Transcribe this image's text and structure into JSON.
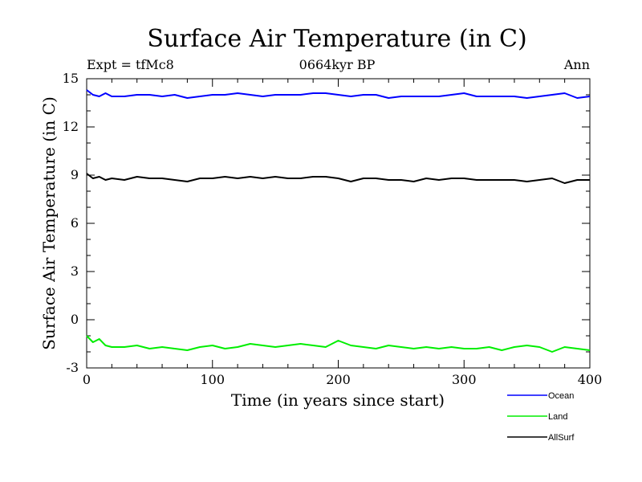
{
  "chart_data": {
    "type": "line",
    "title": "Surface Air Temperature (in C)",
    "subtitle": "0664kyr BP",
    "left_label": "Expt = tfMc8",
    "right_label": "Ann",
    "xlabel": "Time (in years since start)",
    "ylabel": "Surface Air Temperature (in C)",
    "xlim": [
      0,
      400
    ],
    "ylim": [
      -3,
      15
    ],
    "x_ticks": [
      0,
      100,
      200,
      300,
      400
    ],
    "y_ticks": [
      -3,
      0,
      3,
      6,
      9,
      12,
      15
    ],
    "grid": false,
    "legend_position": "bottom-right",
    "series": [
      {
        "name": "Ocean",
        "color": "#0000ff",
        "x": [
          0,
          5,
          10,
          15,
          20,
          30,
          40,
          50,
          60,
          70,
          80,
          90,
          100,
          110,
          120,
          130,
          140,
          150,
          160,
          170,
          180,
          190,
          200,
          210,
          220,
          230,
          240,
          250,
          260,
          270,
          280,
          290,
          300,
          310,
          320,
          330,
          340,
          350,
          360,
          370,
          380,
          390,
          400
        ],
        "values": [
          14.3,
          14.0,
          13.9,
          14.1,
          13.9,
          13.9,
          14.0,
          14.0,
          13.9,
          14.0,
          13.8,
          13.9,
          14.0,
          14.0,
          14.1,
          14.0,
          13.9,
          14.0,
          14.0,
          14.0,
          14.1,
          14.1,
          14.0,
          13.9,
          14.0,
          14.0,
          13.8,
          13.9,
          13.9,
          13.9,
          13.9,
          14.0,
          14.1,
          13.9,
          13.9,
          13.9,
          13.9,
          13.8,
          13.9,
          14.0,
          14.1,
          13.8,
          13.9
        ]
      },
      {
        "name": "Land",
        "color": "#00ee00",
        "x": [
          0,
          5,
          10,
          15,
          20,
          30,
          40,
          50,
          60,
          70,
          80,
          90,
          100,
          110,
          120,
          130,
          140,
          150,
          160,
          170,
          180,
          190,
          200,
          210,
          220,
          230,
          240,
          250,
          260,
          270,
          280,
          290,
          300,
          310,
          320,
          330,
          340,
          350,
          360,
          370,
          380,
          390,
          400
        ],
        "values": [
          -1.0,
          -1.4,
          -1.2,
          -1.6,
          -1.7,
          -1.7,
          -1.6,
          -1.8,
          -1.7,
          -1.8,
          -1.9,
          -1.7,
          -1.6,
          -1.8,
          -1.7,
          -1.5,
          -1.6,
          -1.7,
          -1.6,
          -1.5,
          -1.6,
          -1.7,
          -1.3,
          -1.6,
          -1.7,
          -1.8,
          -1.6,
          -1.7,
          -1.8,
          -1.7,
          -1.8,
          -1.7,
          -1.8,
          -1.8,
          -1.7,
          -1.9,
          -1.7,
          -1.6,
          -1.7,
          -2.0,
          -1.7,
          -1.8,
          -1.9
        ]
      },
      {
        "name": "AllSurf",
        "color": "#000000",
        "x": [
          0,
          5,
          10,
          15,
          20,
          30,
          40,
          50,
          60,
          70,
          80,
          90,
          100,
          110,
          120,
          130,
          140,
          150,
          160,
          170,
          180,
          190,
          200,
          210,
          220,
          230,
          240,
          250,
          260,
          270,
          280,
          290,
          300,
          310,
          320,
          330,
          340,
          350,
          360,
          370,
          380,
          390,
          400
        ],
        "values": [
          9.1,
          8.8,
          8.9,
          8.7,
          8.8,
          8.7,
          8.9,
          8.8,
          8.8,
          8.7,
          8.6,
          8.8,
          8.8,
          8.9,
          8.8,
          8.9,
          8.8,
          8.9,
          8.8,
          8.8,
          8.9,
          8.9,
          8.8,
          8.6,
          8.8,
          8.8,
          8.7,
          8.7,
          8.6,
          8.8,
          8.7,
          8.8,
          8.8,
          8.7,
          8.7,
          8.7,
          8.7,
          8.6,
          8.7,
          8.8,
          8.5,
          8.7,
          8.7
        ]
      }
    ]
  }
}
